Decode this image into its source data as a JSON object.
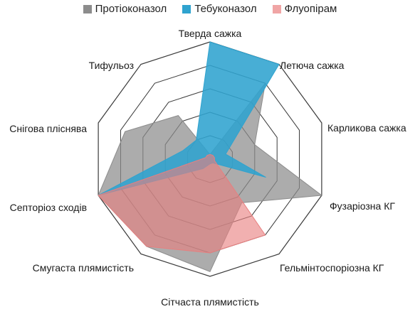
{
  "chart_data": {
    "type": "radar",
    "categories": [
      "Тверда сажка",
      "Летюча сажка",
      "Карликова сажка",
      "Фузаріозна КГ",
      "Гельмінтоспоріозна КГ",
      "Сітчаста плямистість",
      "Смугаста плямистість",
      "Септоріоз сходів",
      "Снігова пліснява",
      "Тифульоз"
    ],
    "rmax": 5,
    "grid_levels": 5,
    "legend_position": "top",
    "series": [
      {
        "name": "Протіоконазол",
        "color": "#8c8c8c",
        "values": [
          0.2,
          4.0,
          2.0,
          5.0,
          2.3,
          4.8,
          4.6,
          5.0,
          3.8,
          2.3
        ]
      },
      {
        "name": "Тебуконазол",
        "color": "#2fa3cf",
        "values": [
          5.0,
          5.0,
          0.7,
          2.5,
          0.2,
          0.2,
          0.5,
          5.0,
          1.2,
          1.0
        ]
      },
      {
        "name": "Флуопірам",
        "color": "#e87f7f",
        "values": [
          0.2,
          0.2,
          0.2,
          0.2,
          4.0,
          4.0,
          4.6,
          5.0,
          0.2,
          0.2
        ]
      }
    ]
  }
}
